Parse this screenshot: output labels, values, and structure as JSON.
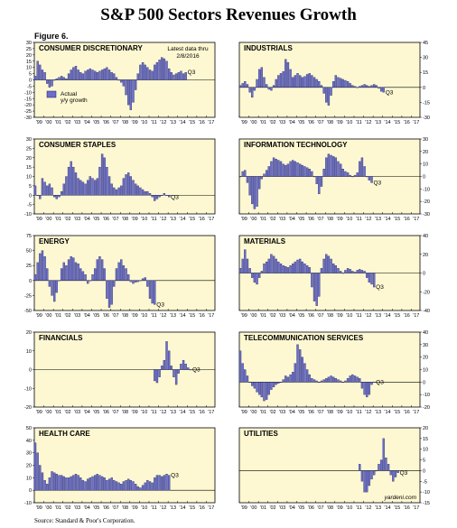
{
  "page": {
    "title": "S&P 500 Sectors Revenues Growth",
    "figure_label": "Figure 6.",
    "source": "Source: Standard & Poor's Corporation.",
    "watermark": "yardeni.com",
    "latest_note_line1": "Latest data thru",
    "latest_note_line2": "2/8/2016",
    "legend_label_line1": "Actual",
    "legend_label_line2": "y/y growth",
    "q3_label": "Q3"
  },
  "colors": {
    "panel_bg": "#fdf8d2",
    "bar_fill": "#6b6fc9",
    "bar_edge": "#1a1a5a"
  },
  "chart_data": [
    {
      "type": "bar",
      "title": "CONSUMER DISCRETIONARY",
      "ylim": [
        -30,
        30
      ],
      "yticks": [
        -30,
        -25,
        -20,
        -15,
        -10,
        -5,
        0,
        5,
        10,
        15,
        20,
        25,
        30
      ],
      "axis_side": "left",
      "x_labels": [
        "'99",
        "'00",
        "'01",
        "'02",
        "'03",
        "'04",
        "'05",
        "'06",
        "'07",
        "'08",
        "'09",
        "'10",
        "'11",
        "'12",
        "'13",
        "'14",
        "'15",
        "'16",
        "'17"
      ],
      "start": 1999.0,
      "values": [
        3,
        15,
        12,
        8,
        6,
        -3,
        -6,
        -5,
        0,
        1,
        2,
        3,
        2,
        1,
        5,
        8,
        10,
        11,
        8,
        6,
        5,
        7,
        8,
        9,
        8,
        7,
        6,
        7,
        8,
        9,
        10,
        8,
        6,
        5,
        2,
        0,
        -2,
        -5,
        -12,
        -20,
        -24,
        -18,
        -8,
        5,
        12,
        14,
        12,
        10,
        8,
        7,
        12,
        14,
        16,
        18,
        17,
        15,
        9,
        6,
        4,
        5,
        6,
        7,
        5,
        6
      ]
    },
    {
      "type": "bar",
      "title": "INDUSTRIALS",
      "ylim": [
        -30,
        45
      ],
      "yticks": [
        -30,
        -15,
        0,
        15,
        30,
        45
      ],
      "axis_side": "right",
      "x_labels": [
        "'99",
        "'00",
        "'01",
        "'02",
        "'03",
        "'04",
        "'05",
        "'06",
        "'07",
        "'08",
        "'09",
        "'10",
        "'11",
        "'12",
        "'13",
        "'14",
        "'15",
        "'16",
        "'17"
      ],
      "start": 1999.0,
      "values": [
        2,
        4,
        6,
        3,
        -5,
        -10,
        -3,
        8,
        18,
        20,
        10,
        3,
        -2,
        -3,
        2,
        8,
        12,
        14,
        16,
        28,
        25,
        18,
        10,
        12,
        14,
        12,
        10,
        11,
        13,
        14,
        12,
        10,
        8,
        6,
        2,
        -6,
        -15,
        -18,
        -8,
        6,
        12,
        10,
        9,
        8,
        7,
        6,
        4,
        2,
        1,
        0,
        1,
        2,
        3,
        2,
        1,
        2,
        3,
        2,
        -1,
        -4,
        -5
      ]
    },
    {
      "type": "bar",
      "title": "CONSUMER STAPLES",
      "ylim": [
        -10,
        30
      ],
      "yticks": [
        -10,
        -5,
        0,
        5,
        10,
        15,
        20,
        25,
        30
      ],
      "axis_side": "left",
      "x_labels": [
        "'99",
        "'00",
        "'01",
        "'02",
        "'03",
        "'04",
        "'05",
        "'06",
        "'07",
        "'08",
        "'09",
        "'10",
        "'11",
        "'12",
        "'13",
        "'14",
        "'15",
        "'16",
        "'17"
      ],
      "start": 1999.0,
      "values": [
        5,
        0,
        -2,
        9,
        7,
        5,
        6,
        4,
        -1,
        -2,
        -1,
        2,
        6,
        10,
        15,
        18,
        15,
        12,
        9,
        8,
        7,
        6,
        8,
        10,
        9,
        8,
        9,
        15,
        22,
        20,
        15,
        10,
        6,
        4,
        3,
        4,
        5,
        9,
        11,
        12,
        10,
        8,
        6,
        5,
        4,
        3,
        2,
        2,
        1,
        -1,
        -3,
        -2,
        -1,
        0,
        1,
        0,
        -1
      ]
    },
    {
      "type": "bar",
      "title": "INFORMATION TECHNOLOGY",
      "ylim": [
        -30,
        30
      ],
      "yticks": [
        -30,
        -20,
        -10,
        0,
        10,
        20,
        30
      ],
      "axis_side": "right",
      "x_labels": [
        "'99",
        "'00",
        "'01",
        "'02",
        "'03",
        "'04",
        "'05",
        "'06",
        "'07",
        "'08",
        "'09",
        "'10",
        "'11",
        "'12",
        "'13",
        "'14",
        "'15",
        "'16",
        "'17"
      ],
      "start": 1999.0,
      "values": [
        0,
        4,
        5,
        -5,
        -15,
        -22,
        -26,
        -24,
        -10,
        -2,
        2,
        5,
        8,
        12,
        15,
        14,
        13,
        12,
        10,
        9,
        10,
        12,
        13,
        12,
        11,
        10,
        9,
        8,
        7,
        6,
        4,
        0,
        -6,
        -14,
        -8,
        6,
        15,
        18,
        17,
        16,
        15,
        12,
        10,
        6,
        4,
        3,
        1,
        0,
        1,
        3,
        12,
        15,
        8,
        0,
        -3,
        -5
      ]
    },
    {
      "type": "bar",
      "title": "ENERGY",
      "ylim": [
        -50,
        75
      ],
      "yticks": [
        -50,
        -25,
        0,
        25,
        50,
        75
      ],
      "axis_side": "left",
      "x_labels": [
        "'99",
        "'00",
        "'01",
        "'02",
        "'03",
        "'04",
        "'05",
        "'06",
        "'07",
        "'08",
        "'09",
        "'10",
        "'11",
        "'12",
        "'13",
        "'14",
        "'15",
        "'16",
        "'17"
      ],
      "start": 1999.0,
      "values": [
        10,
        30,
        45,
        50,
        40,
        20,
        -10,
        -25,
        -35,
        -20,
        0,
        20,
        30,
        25,
        35,
        40,
        38,
        30,
        28,
        20,
        15,
        10,
        -5,
        0,
        10,
        20,
        35,
        40,
        35,
        20,
        -30,
        -45,
        -40,
        -10,
        20,
        30,
        35,
        25,
        20,
        10,
        -2,
        -5,
        -3,
        -2,
        0,
        3,
        5,
        -10,
        -30,
        -38,
        -40
      ]
    },
    {
      "type": "bar",
      "title": "MATERIALS",
      "ylim": [
        -40,
        40
      ],
      "yticks": [
        -40,
        -20,
        0,
        20,
        40
      ],
      "axis_side": "right",
      "x_labels": [
        "'99",
        "'00",
        "'01",
        "'02",
        "'03",
        "'04",
        "'05",
        "'06",
        "'07",
        "'08",
        "'09",
        "'10",
        "'11",
        "'12",
        "'13",
        "'14",
        "'15",
        "'16",
        "'17"
      ],
      "start": 1999.0,
      "values": [
        5,
        15,
        25,
        15,
        5,
        -5,
        -10,
        -12,
        -5,
        2,
        10,
        12,
        15,
        20,
        18,
        15,
        12,
        10,
        8,
        7,
        6,
        8,
        10,
        12,
        14,
        15,
        12,
        10,
        8,
        6,
        -15,
        -30,
        -35,
        -25,
        5,
        15,
        20,
        18,
        15,
        10,
        8,
        5,
        2,
        0,
        3,
        5,
        4,
        2,
        1,
        3,
        4,
        3,
        2,
        -5,
        -10,
        -12,
        -15
      ]
    },
    {
      "type": "bar",
      "title": "FINANCIALS",
      "ylim": [
        -20,
        20
      ],
      "yticks": [
        -20,
        -10,
        0,
        10,
        20
      ],
      "axis_side": "left",
      "x_labels": [
        "'99",
        "'00",
        "'01",
        "'02",
        "'03",
        "'04",
        "'05",
        "'06",
        "'07",
        "'08",
        "'09",
        "'10",
        "'11",
        "'12",
        "'13",
        "'14",
        "'15",
        "'16",
        "'17"
      ],
      "start": 2011.5,
      "values": [
        -6,
        -7,
        -4,
        2,
        5,
        15,
        10,
        2,
        -4,
        -8,
        -2,
        3,
        5,
        3,
        1,
        0
      ]
    },
    {
      "type": "bar",
      "title": "TELECOMMUNICATION SERVICES",
      "ylim": [
        -20,
        40
      ],
      "yticks": [
        -20,
        -10,
        0,
        10,
        20,
        30,
        40
      ],
      "axis_side": "right",
      "x_labels": [
        "'99",
        "'00",
        "'01",
        "'02",
        "'03",
        "'04",
        "'05",
        "'06",
        "'07",
        "'08",
        "'09",
        "'10",
        "'11",
        "'12",
        "'13",
        "'14",
        "'15",
        "'16",
        "'17"
      ],
      "start": 1999.0,
      "values": [
        25,
        15,
        10,
        5,
        0,
        -3,
        -5,
        -8,
        -10,
        -12,
        -15,
        -14,
        -10,
        -6,
        -4,
        -2,
        -1,
        0,
        2,
        5,
        4,
        6,
        8,
        15,
        30,
        26,
        20,
        15,
        10,
        6,
        3,
        2,
        1,
        0,
        1,
        2,
        3,
        4,
        5,
        4,
        3,
        2,
        1,
        0,
        1,
        3,
        5,
        6,
        5,
        4,
        3,
        -5,
        -10,
        -12,
        -10,
        -2,
        0
      ]
    },
    {
      "type": "bar",
      "title": "HEALTH CARE",
      "ylim": [
        -10,
        50
      ],
      "yticks": [
        -10,
        0,
        10,
        20,
        30,
        40,
        50
      ],
      "axis_side": "left",
      "x_labels": [
        "'99",
        "'00",
        "'01",
        "'02",
        "'03",
        "'04",
        "'05",
        "'06",
        "'07",
        "'08",
        "'09",
        "'10",
        "'11",
        "'12",
        "'13",
        "'14",
        "'15",
        "'16",
        "'17"
      ],
      "start": 1999.0,
      "values": [
        38,
        30,
        20,
        14,
        8,
        5,
        10,
        15,
        14,
        13,
        12,
        12,
        11,
        10,
        10,
        11,
        12,
        13,
        12,
        10,
        8,
        7,
        9,
        10,
        11,
        12,
        13,
        12,
        11,
        10,
        8,
        9,
        10,
        8,
        7,
        6,
        5,
        7,
        8,
        9,
        8,
        7,
        5,
        3,
        2,
        4,
        6,
        8,
        7,
        6,
        10,
        12,
        12,
        11,
        12,
        13,
        12
      ]
    },
    {
      "type": "bar",
      "title": "UTILITIES",
      "ylim": [
        -15,
        20
      ],
      "yticks": [
        -15,
        -10,
        -5,
        0,
        5,
        10,
        15,
        20
      ],
      "axis_side": "right",
      "x_labels": [
        "'99",
        "'00",
        "'01",
        "'02",
        "'03",
        "'04",
        "'05",
        "'06",
        "'07",
        "'08",
        "'09",
        "'10",
        "'11",
        "'12",
        "'13",
        "'14",
        "'15",
        "'16",
        "'17"
      ],
      "start": 2011.5,
      "values": [
        3,
        -5,
        -10,
        -10,
        -7,
        -4,
        -2,
        0,
        3,
        5,
        15,
        6,
        3,
        -2,
        -5,
        -3,
        -1
      ]
    }
  ]
}
